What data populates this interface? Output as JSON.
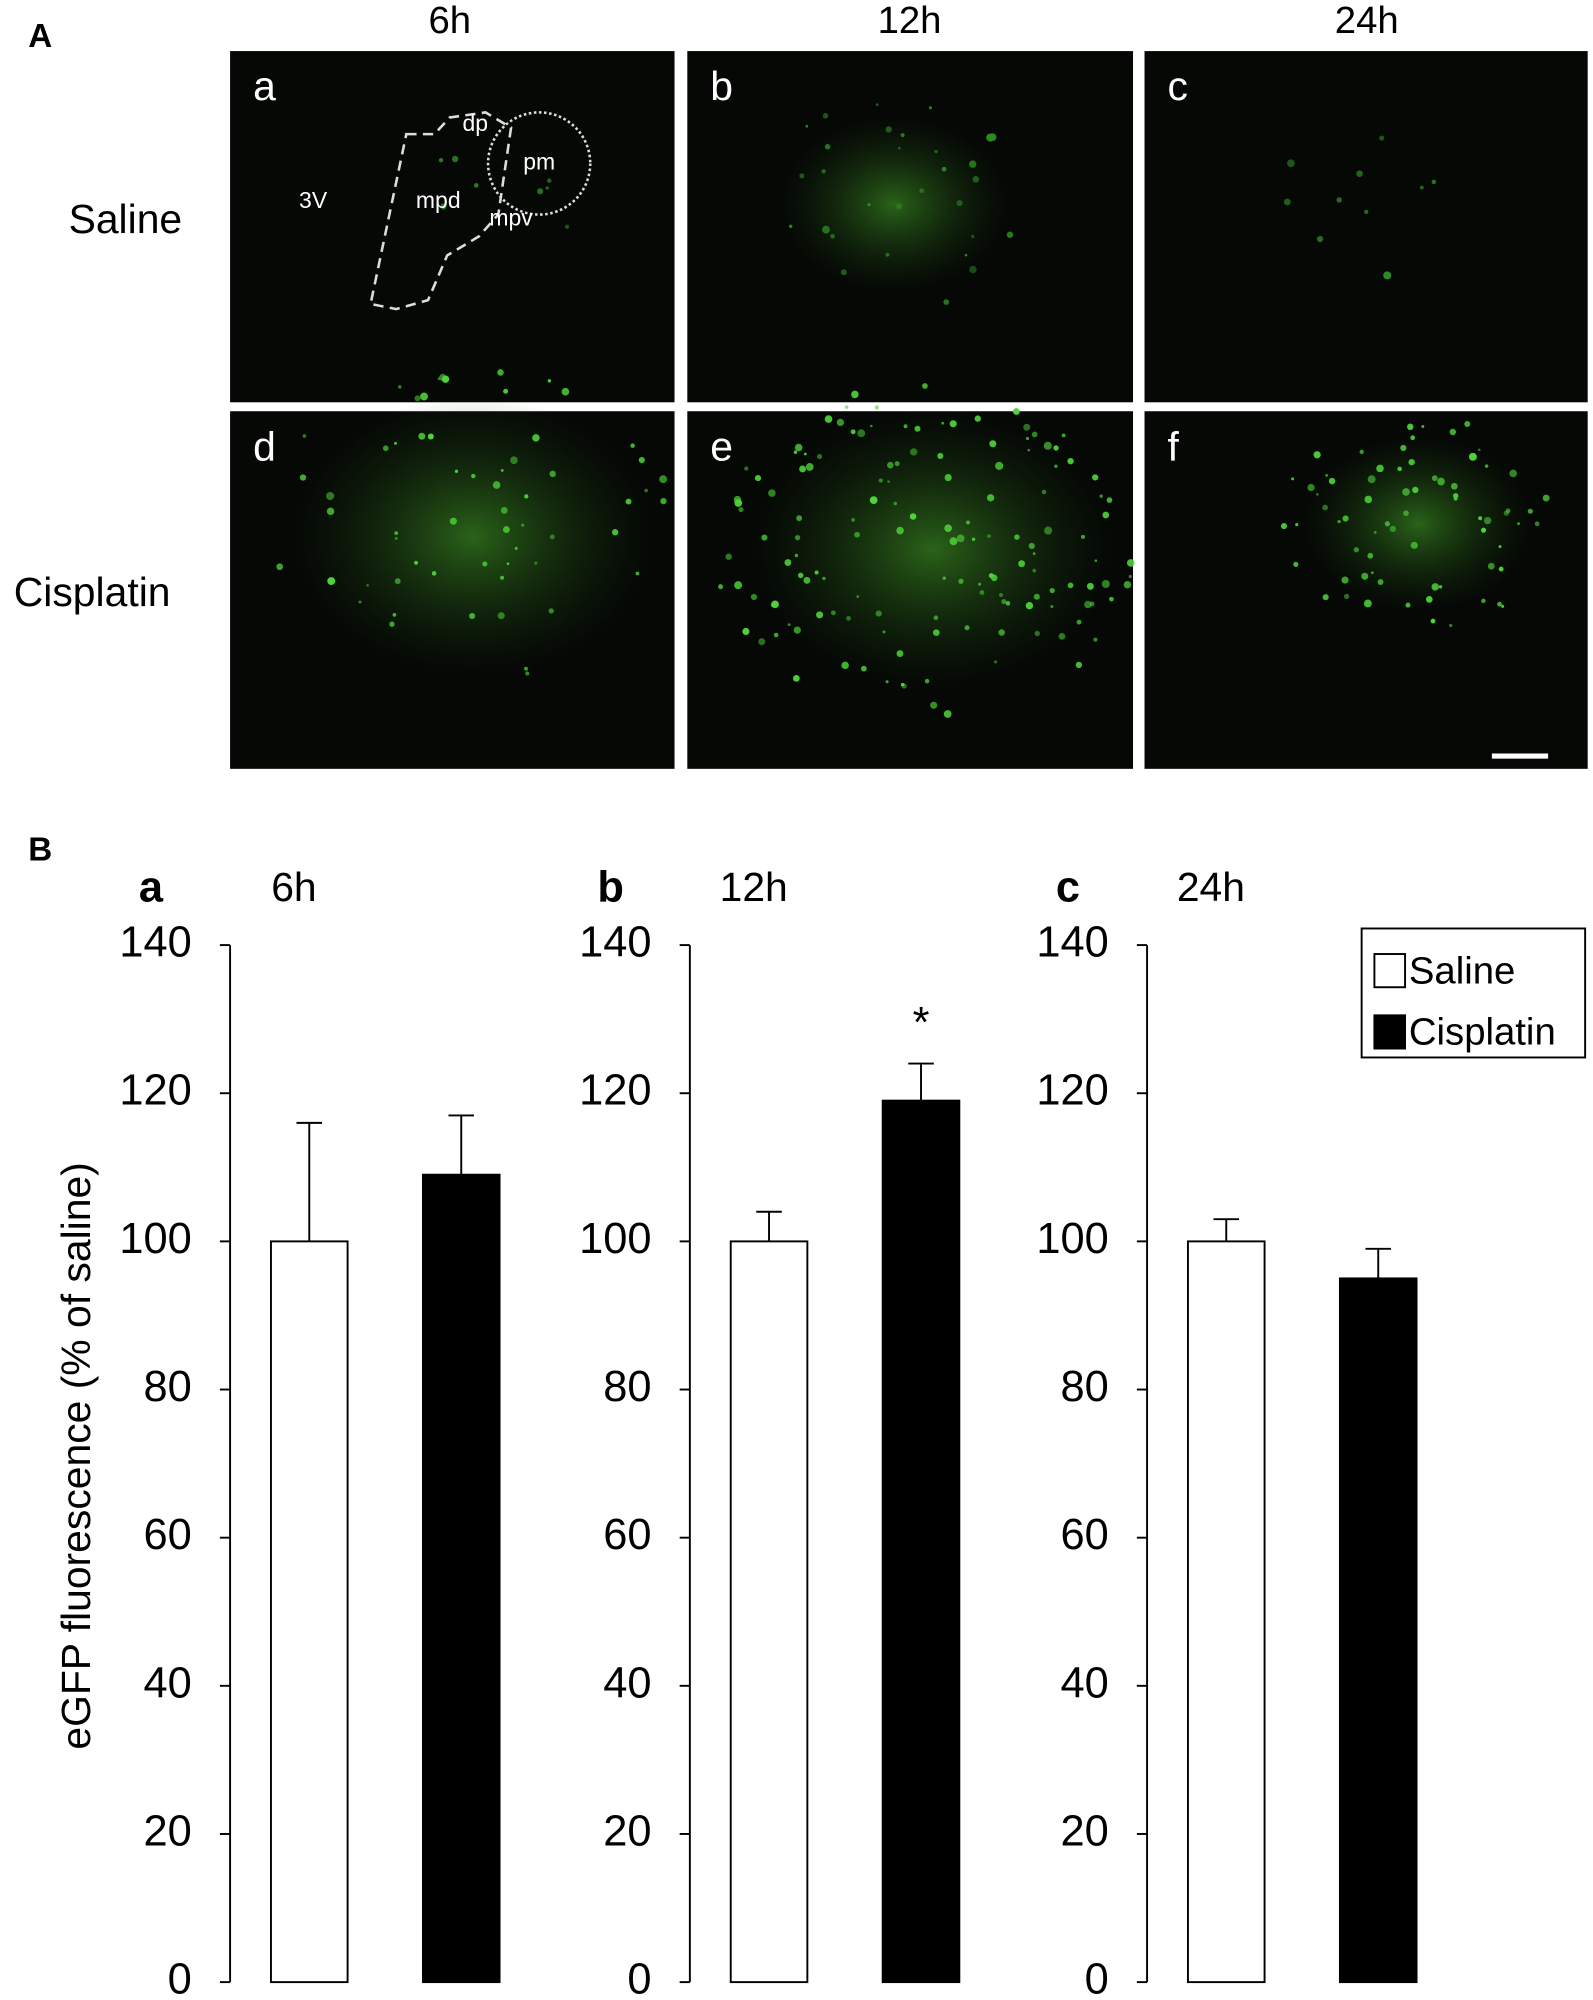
{
  "panel_A": {
    "label": "A",
    "columns": [
      "6h",
      "12h",
      "24h"
    ],
    "rows": [
      "Saline",
      "Cisplatin"
    ],
    "panels": [
      "a",
      "b",
      "c",
      "d",
      "e",
      "f"
    ],
    "regions": [
      "3V",
      "dp",
      "pm",
      "mpd",
      "mpv"
    ]
  },
  "panel_B": {
    "label": "B"
  },
  "chart_data": [
    {
      "type": "bar",
      "title": "a",
      "subtitle": "6h",
      "y_label": "eGFP fluorescence (% of saline)",
      "series": [
        {
          "color": "#ffffff",
          "values": [
            100
          ],
          "errors": [
            16
          ]
        },
        {
          "color": "#000000",
          "values": [
            109
          ],
          "errors": [
            8
          ]
        }
      ],
      "ylim": [
        0,
        140
      ],
      "yticks": [
        0,
        20,
        40,
        60,
        80,
        100,
        120,
        140
      ]
    },
    {
      "type": "bar",
      "title": "b",
      "subtitle": "12h",
      "annotation": "*",
      "series": [
        {
          "color": "#ffffff",
          "values": [
            100
          ],
          "errors": [
            4
          ]
        },
        {
          "color": "#000000",
          "values": [
            119
          ],
          "errors": [
            5
          ]
        }
      ],
      "ylim": [
        0,
        140
      ],
      "yticks": [
        0,
        20,
        40,
        60,
        80,
        100,
        120,
        140
      ]
    },
    {
      "type": "bar",
      "title": "c",
      "subtitle": "24h",
      "legend": "upper right",
      "series": [
        {
          "name": "Saline",
          "color": "#ffffff",
          "values": [
            100
          ],
          "errors": [
            3
          ]
        },
        {
          "name": "Cisplatin",
          "color": "#000000",
          "values": [
            95
          ],
          "errors": [
            4
          ]
        }
      ],
      "ylim": [
        0,
        140
      ],
      "yticks": [
        0,
        20,
        40,
        60,
        80,
        100,
        120,
        140
      ]
    }
  ]
}
